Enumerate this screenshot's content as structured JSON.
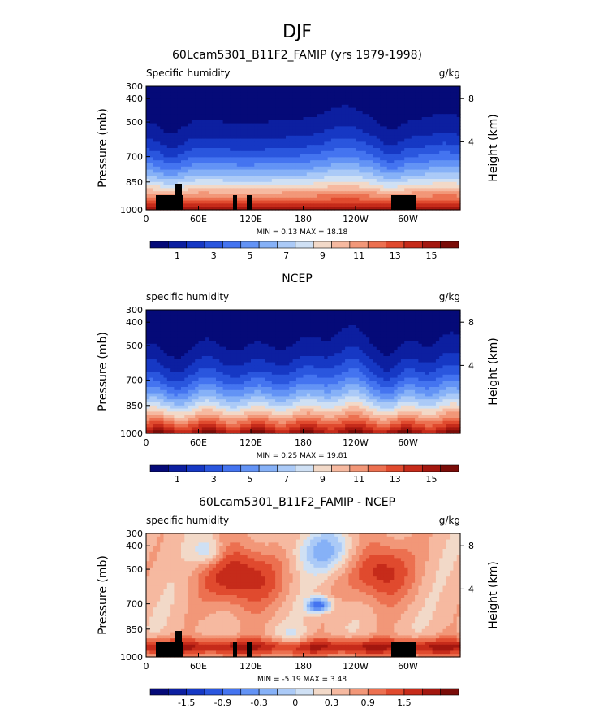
{
  "figure_title": "DJF",
  "chart_data": [
    {
      "type": "heatmap",
      "title": "60Lcam5301_B11F2_FAMIP (yrs 1979-1998)",
      "left_label": "Specific humidity",
      "units": "g/kg",
      "ylabel": "Pressure (mb)",
      "ylabel_right": "Height (km)",
      "x_ticks": [
        "0",
        "60E",
        "120E",
        "180",
        "120W",
        "60W"
      ],
      "y_ticks": [
        "300",
        "400",
        "500",
        "700",
        "850",
        "1000"
      ],
      "right_ticks": [
        "8",
        "4"
      ],
      "stats": "MIN =    0.13   MAX =   18.18",
      "colorbar_labels": [
        "1",
        "3",
        "5",
        "7",
        "9",
        "11",
        "13",
        "15"
      ],
      "min": 0.13,
      "max": 18.18,
      "colors": [
        "#050a78",
        "#0c1fa0",
        "#1638c4",
        "#2a56de",
        "#4474f0",
        "#6393f5",
        "#86b1f7",
        "#abcaf7",
        "#cfe0f4",
        "#f2d9c8",
        "#f6b9a0",
        "#f29778",
        "#ec7050",
        "#e04a2e",
        "#c62b1a",
        "#a3170f",
        "#7a0c08"
      ]
    },
    {
      "type": "heatmap",
      "title": "NCEP",
      "left_label": "specific humidity",
      "units": "g/kg",
      "ylabel": "Pressure (mb)",
      "ylabel_right": "Height (km)",
      "x_ticks": [
        "0",
        "60E",
        "120E",
        "180",
        "120W",
        "60W"
      ],
      "y_ticks": [
        "300",
        "400",
        "500",
        "700",
        "850",
        "1000"
      ],
      "right_ticks": [
        "8",
        "4"
      ],
      "stats": "MIN =    0.25   MAX =   19.81",
      "colorbar_labels": [
        "1",
        "3",
        "5",
        "7",
        "9",
        "11",
        "13",
        "15"
      ],
      "min": 0.25,
      "max": 19.81,
      "colors": [
        "#050a78",
        "#0c1fa0",
        "#1638c4",
        "#2a56de",
        "#4474f0",
        "#6393f5",
        "#86b1f7",
        "#abcaf7",
        "#cfe0f4",
        "#f2d9c8",
        "#f6b9a0",
        "#f29778",
        "#ec7050",
        "#e04a2e",
        "#c62b1a",
        "#a3170f",
        "#7a0c08"
      ]
    },
    {
      "type": "heatmap",
      "title": "60Lcam5301_B11F2_FAMIP - NCEP",
      "left_label": "specific humidity",
      "units": "g/kg",
      "ylabel": "Pressure (mb)",
      "ylabel_right": "Height (km)",
      "x_ticks": [
        "0",
        "60E",
        "120E",
        "180",
        "120W",
        "60W"
      ],
      "y_ticks": [
        "300",
        "400",
        "500",
        "700",
        "850",
        "1000"
      ],
      "right_ticks": [
        "8",
        "4"
      ],
      "stats": "MIN =   -5.19   MAX =    3.48",
      "colorbar_labels": [
        "-1.5",
        "-0.9",
        "-0.3",
        "0",
        "0.3",
        "0.9",
        "1.5"
      ],
      "min": -5.19,
      "max": 3.48,
      "colors": [
        "#050a78",
        "#0c1fa0",
        "#1638c4",
        "#2a56de",
        "#4474f0",
        "#6393f5",
        "#86b1f7",
        "#abcaf7",
        "#cfe0f4",
        "#f2d9c8",
        "#f6b9a0",
        "#f29778",
        "#ec7050",
        "#e04a2e",
        "#c62b1a",
        "#a3170f",
        "#7a0c08"
      ]
    }
  ]
}
